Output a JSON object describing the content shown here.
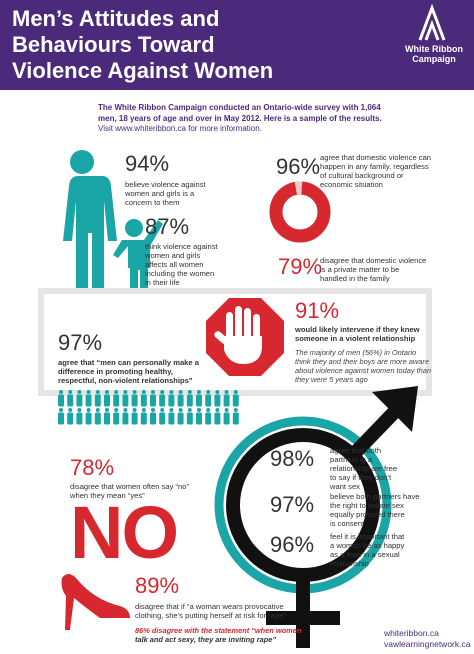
{
  "header": {
    "title": [
      "Men’s Attitudes and",
      "Behaviours Toward",
      "Violence Against Women"
    ],
    "logo": [
      "White Ribbon",
      "Campaign"
    ]
  },
  "intro": [
    "The White Ribbon Campaign conducted an Ontario-wide survey with 1,064",
    "men, 18 years of age and over in May 2012. Here is a sample of the results.",
    "Visit www.whiteribbon.ca for more information."
  ],
  "stats": [
    {
      "percent": "94%",
      "text": [
        "believe violence against",
        "women and girls is a",
        "concern to them"
      ]
    },
    {
      "percent": "87%",
      "text": [
        "think violence against",
        "women and girls",
        "affects all women",
        "including the women",
        "in their life"
      ]
    },
    {
      "percent": "96%",
      "text": [
        "agree that domestic violence can",
        "happen in any family, regardless",
        "of cultural background or",
        "economic situation"
      ]
    },
    {
      "percent": "79%",
      "text": [
        "disagree that domestic violence",
        "is a private matter to be",
        "handled in the family"
      ]
    },
    {
      "percent": "91%",
      "text": [
        "would likely intervene if they knew",
        "someone in a violent relationship"
      ]
    },
    {
      "percent": "97%",
      "text": [
        "agree that “men can personally make a",
        "difference in promoting healthy,",
        "respectful, non-violent relationships”"
      ]
    },
    {
      "percent": "98%",
      "text": [
        "agree that both",
        "partners in a",
        "relationship are free",
        "to say if they don’t",
        "want sex"
      ]
    },
    {
      "percent": "97%",
      "text": [
        "believe both partners have",
        "the right to initiate sex",
        "equally provided there",
        "is consent"
      ]
    },
    {
      "percent": "96%",
      "text": [
        "feel it is important that",
        "a woman be as happy",
        "as a man in a sexual",
        "relationship"
      ]
    },
    {
      "percent": "78%",
      "text": [
        "disagree that women often say “no”",
        "when they mean “yes”"
      ]
    },
    {
      "percent": "89%",
      "text": [
        "disagree that if “a woman wears provocative",
        "clothing, she’s putting herself at risk for rape”"
      ]
    }
  ],
  "note": [
    "The majority of men (56%) in Ontario",
    "think they and their boys are more aware",
    "about violence against women today than",
    "they were 5 years ago"
  ],
  "no_word": "NO",
  "closing": [
    "86% disagree with the statement “when women",
    "talk and act sexy, they are inviting rape”"
  ],
  "footer": [
    "whiteribbon.ca",
    "vawlearningnetwork.ca"
  ]
}
